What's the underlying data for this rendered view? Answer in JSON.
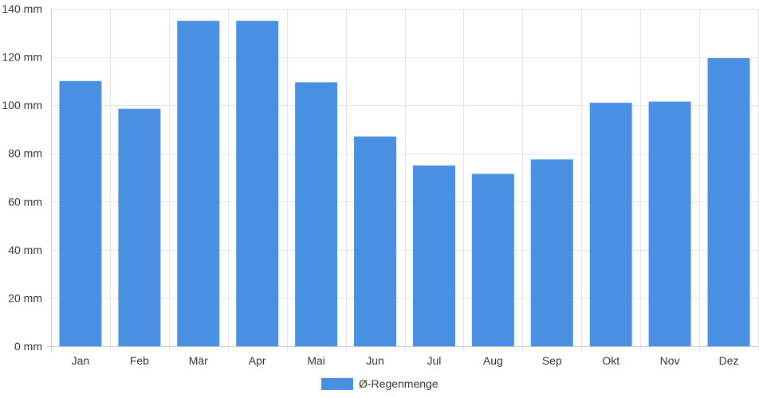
{
  "chart_data": {
    "type": "bar",
    "categories": [
      "Jan",
      "Feb",
      "Mär",
      "Apr",
      "Mai",
      "Jun",
      "Jul",
      "Aug",
      "Sep",
      "Okt",
      "Nov",
      "Dez"
    ],
    "series": [
      {
        "name": "Ø-Regenmenge",
        "color": "#4a90e2",
        "values": [
          110,
          98.5,
          135,
          135,
          109.5,
          87,
          75,
          71.5,
          77.5,
          101,
          101.5,
          119.5
        ]
      }
    ],
    "y_unit": "mm",
    "ylim": [
      0,
      140
    ],
    "yticks": [
      0,
      20,
      40,
      60,
      80,
      100,
      120,
      140
    ],
    "ytick_labels": [
      "0 mm",
      "20 mm",
      "40 mm",
      "60 mm",
      "80 mm",
      "100 mm",
      "120 mm",
      "140 mm"
    ],
    "grid": true,
    "legend_position": "bottom-center"
  }
}
